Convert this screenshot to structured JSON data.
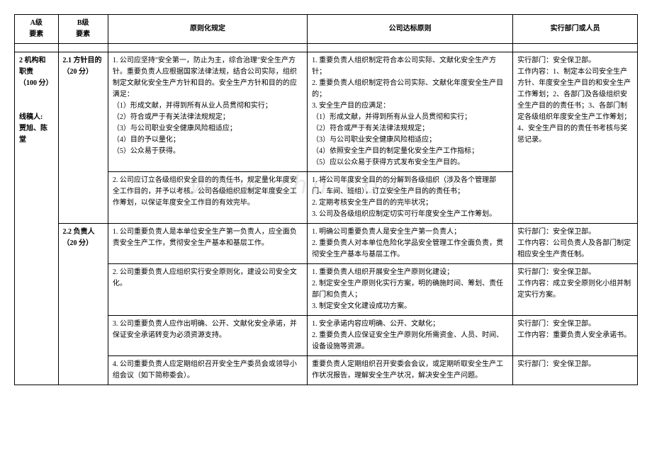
{
  "watermark": "www.zhd.com.cn",
  "headers": {
    "colA": "A级\n要素",
    "colB": "B级\n要素",
    "colC": "原则化规定",
    "colD": "公司达标原则",
    "colE": "实行部门或人员"
  },
  "rows": [
    {
      "a": "2 机构和\n职责\n（100 分）\n\n\n线稿人:\n贾旭、陈\n堂",
      "b": "2.1 方针目的\n（20 分）",
      "c": "1. 公司应坚持\"安全第一，防止为主，综合治理\"安全生产方针。重要负责人应根据国家法律法规，结合公司实际，组织制定文献化安全生产方针和目的。安全生产方针和目的的应满足：\n（1）形成文献，并得到所有从业人员贯彻和实行；\n（2）符合或严于有关法律法规规定；\n（3）与公司职业安全健康风险相适应；\n（4）目的予以量化；\n（5）公众易于获得。",
      "d": "1. 重要负责人组织制定符合本公司实际、文献化安全生产方针；\n2. 重要负责人组织制定符合公司实际、文献化年度安全生产目的；\n3. 安全生产目的应满足：\n（1）形成文献，并得到所有从业人员贯彻和实行；\n（2）符合或严于有关法律法规规定；\n（3）与公司职业安全健康风险相适应；\n（4）依照安全生产目的制定量化安全生产工作指标；\n（5）应以公众易于获得方式发布安全生产目的。",
      "e": "实行部门：安全保卫部。\n工作内容：1、制定本公司安全生产方针、年度安全生产目的和安全生产工作筹划；2、各部门及各级组织安全生产目的的责任书；3、各部门制定各级组织年度安全生产工作筹划；4、安全生产目的的责任书考核与奖惩记录。"
    },
    {
      "a": "",
      "b": "",
      "c": "2. 公司应订立各级组织安全目的的责任书，规定量化年度安全工作目的，并予以考核。公司各级组织应制定年度安全工作筹划，以保证年度安全工作目的有效完毕。",
      "d": "1. 将公司年度安全目的的分解到各级组织（涉及各个管理部门、车间、班组），订立安全生产目的的责任书；\n2. 定期考核安全生产目的的完毕状况；\n3. 公司及各级组织应制定切实可行年度安全生产工作筹划。",
      "e": ""
    },
    {
      "a": "",
      "b": "2.2 负责人\n（20 分）",
      "c": "1. 公司重要负责人是本单位安全生产第一负责人，应全面负责安全生产工作，贯彻安全生产基本和基层工作。",
      "d": "1. 明确公司重要负责人是安全生产第一负责人；\n2. 重要负责人对本单位危险化学品安全管理工作全面负责，贯彻安全生产基本与基层工作。",
      "e": "实行部门：安全保卫部。\n工作内容：公司负责人及各部门制定相应安全生产责任制。"
    },
    {
      "a": "",
      "b": "",
      "c": "2. 公司重要负责人应组织实行安全原则化，建设公司安全文化。",
      "d": "1. 重要负责人组织开展安全生产原则化建设；\n2. 制定安全生产原则化实行方案，明的确施时间、筹划、责任部门和负责人；\n3. 制定安全文化建设成功方案。",
      "e": "实行部门：安全保卫部。\n工作内容：成立安全原则化小组并制定实行方案。"
    },
    {
      "a": "",
      "b": "",
      "c": "3. 公司重要负责人应作出明确、公开、文献化安全承诺，并保证安全承诺转变为必须资源支持。",
      "d": "1. 安全承诺内容应明确、公开、文献化；\n2. 重要负责人应保证安全生产原则化所需资金、人员、时间、设备设施等资源。",
      "e": "实行部门：安全保卫部。\n工作内容：重要负责人安全承诺书。"
    },
    {
      "a": "",
      "b": "",
      "c": "4. 公司重要负责人应定期组织召开安全生产委员会或领导小组会议（如下简称委会）。",
      "d": "重要负责人定期组织召开安委会会议，或定期听取安全生产工作状况报告，理解安全生产状况，解决安全生产问题。",
      "e": "实行部门：安全保卫部。"
    }
  ]
}
